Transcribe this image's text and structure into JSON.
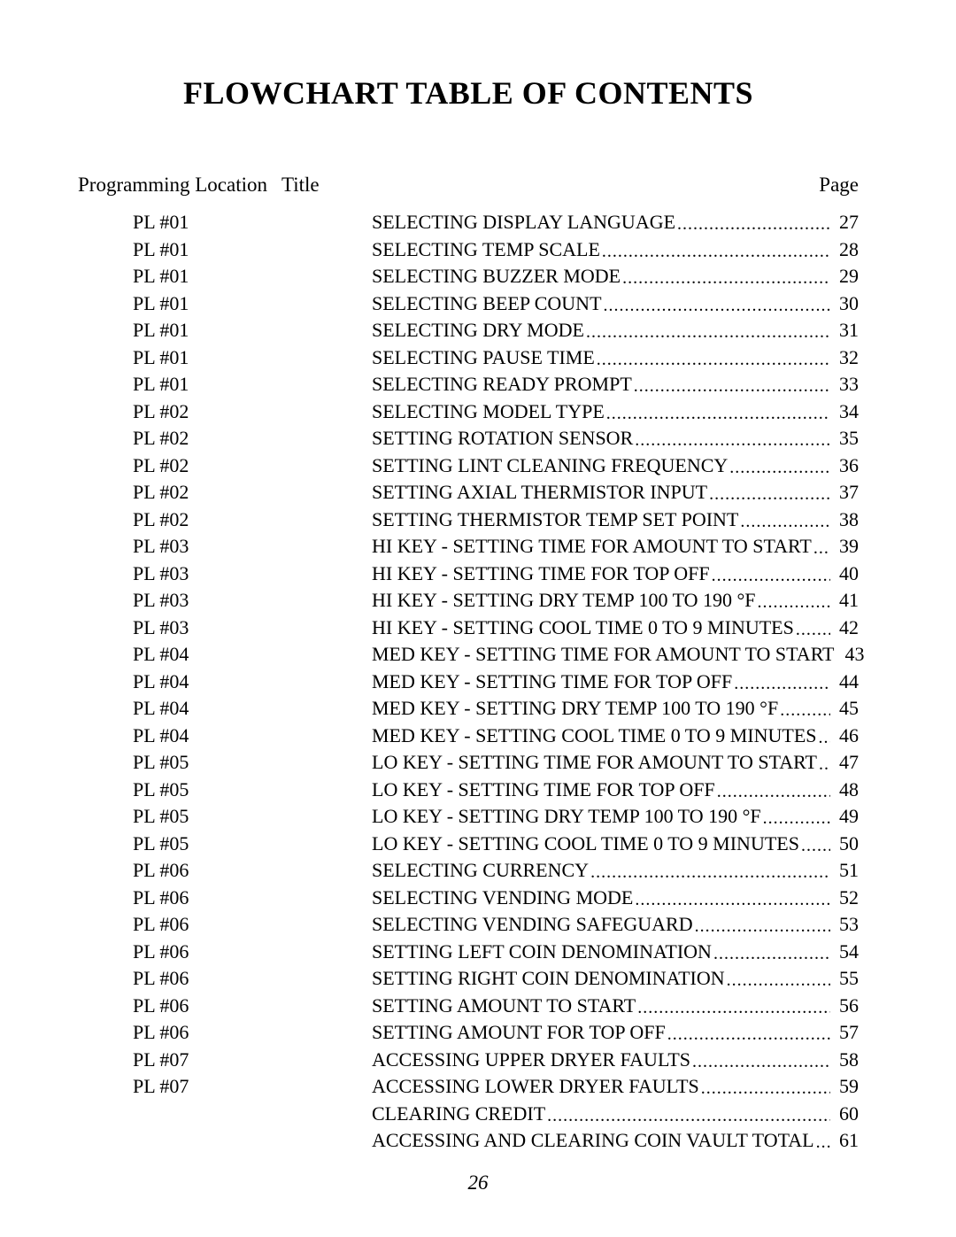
{
  "document": {
    "title": "FLOWCHART TABLE OF CONTENTS",
    "page_number": "26",
    "background_color": "#ffffff",
    "text_color": "#000000",
    "font_family": "Times New Roman",
    "title_fontsize": 36,
    "body_fontsize": 22,
    "header_fontsize": 23
  },
  "headers": {
    "location": "Programming Location",
    "title": "Title",
    "page": "Page"
  },
  "entries": [
    {
      "pl": "PL #01",
      "title": "SELECTING DISPLAY LANGUAGE",
      "page": "27"
    },
    {
      "pl": "PL #01",
      "title": "SELECTING TEMP SCALE",
      "page": "28"
    },
    {
      "pl": "PL #01",
      "title": "SELECTING BUZZER MODE",
      "page": "29"
    },
    {
      "pl": "PL #01",
      "title": "SELECTING BEEP COUNT",
      "page": "30"
    },
    {
      "pl": "PL #01",
      "title": "SELECTING DRY MODE",
      "page": "31"
    },
    {
      "pl": "PL #01",
      "title": "SELECTING PAUSE TIME",
      "page": "32"
    },
    {
      "pl": "PL #01",
      "title": "SELECTING READY PROMPT",
      "page": "33"
    },
    {
      "pl": "PL #02",
      "title": "SELECTING MODEL TYPE",
      "page": "34"
    },
    {
      "pl": "PL #02",
      "title": "SETTING ROTATION SENSOR",
      "page": "35"
    },
    {
      "pl": "PL #02",
      "title": "SETTING LINT CLEANING FREQUENCY",
      "page": "36"
    },
    {
      "pl": "PL #02",
      "title": "SETTING AXIAL THERMISTOR INPUT",
      "page": "37"
    },
    {
      "pl": "PL #02",
      "title": "SETTING THERMISTOR TEMP SET POINT",
      "page": "38"
    },
    {
      "pl": "PL #03",
      "title": "HI KEY - SETTING TIME FOR AMOUNT TO START",
      "page": "39"
    },
    {
      "pl": "PL #03",
      "title": "HI KEY - SETTING TIME FOR TOP OFF",
      "page": "40"
    },
    {
      "pl": "PL #03",
      "title": "HI KEY - SETTING DRY TEMP 100 TO 190 °F",
      "page": "41"
    },
    {
      "pl": "PL #03",
      "title": "HI KEY - SETTING COOL TIME 0 TO 9 MINUTES",
      "page": "42"
    },
    {
      "pl": "PL #04",
      "title": "MED KEY - SETTING TIME FOR AMOUNT TO START",
      "page": "43"
    },
    {
      "pl": "PL #04",
      "title": "MED KEY - SETTING TIME FOR TOP OFF",
      "page": "44"
    },
    {
      "pl": "PL #04",
      "title": "MED KEY - SETTING DRY TEMP 100 TO 190 °F",
      "page": "45"
    },
    {
      "pl": "PL #04",
      "title": "MED KEY - SETTING COOL TIME 0 TO 9 MINUTES",
      "page": "46"
    },
    {
      "pl": "PL #05",
      "title": "LO KEY - SETTING TIME FOR AMOUNT TO START",
      "page": "47"
    },
    {
      "pl": "PL #05",
      "title": "LO KEY - SETTING TIME FOR TOP OFF",
      "page": "48"
    },
    {
      "pl": "PL #05",
      "title": "LO KEY - SETTING DRY TEMP 100 TO 190 °F",
      "page": "49"
    },
    {
      "pl": "PL #05",
      "title": "LO KEY - SETTING COOL TIME 0 TO 9 MINUTES",
      "page": "50"
    },
    {
      "pl": "PL #06",
      "title": "SELECTING CURRENCY",
      "page": "51"
    },
    {
      "pl": "PL #06",
      "title": "SELECTING VENDING MODE",
      "page": "52"
    },
    {
      "pl": "PL #06",
      "title": "SELECTING VENDING SAFEGUARD",
      "page": "53"
    },
    {
      "pl": "PL #06",
      "title": "SETTING LEFT COIN DENOMINATION",
      "page": "54"
    },
    {
      "pl": "PL #06",
      "title": "SETTING RIGHT COIN DENOMINATION",
      "page": "55"
    },
    {
      "pl": "PL #06",
      "title": "SETTING AMOUNT TO START",
      "page": "56"
    },
    {
      "pl": "PL #06",
      "title": "SETTING AMOUNT FOR TOP OFF",
      "page": "57"
    },
    {
      "pl": "PL #07",
      "title": "ACCESSING UPPER DRYER FAULTS",
      "page": "58"
    },
    {
      "pl": "PL #07",
      "title": "ACCESSING LOWER DRYER FAULTS",
      "page": "59"
    },
    {
      "pl": "",
      "title": "CLEARING CREDIT",
      "page": "60"
    },
    {
      "pl": "",
      "title": "ACCESSING AND CLEARING COIN VAULT TOTAL",
      "page": "61"
    }
  ]
}
